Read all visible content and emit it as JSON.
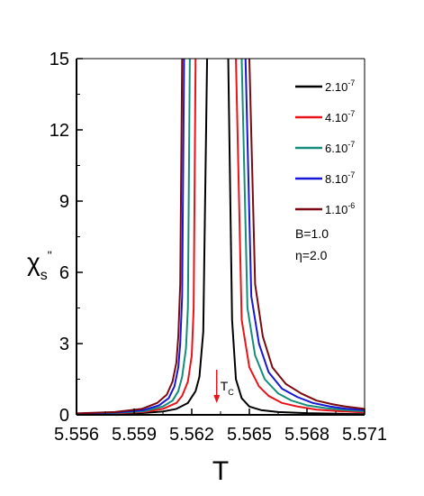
{
  "chart_data": {
    "type": "line",
    "xlabel": "T",
    "ylabel": "χ",
    "ylabel_sub": "s",
    "ylabel_sup": "\"",
    "xlim": [
      5.556,
      5.571
    ],
    "ylim": [
      0,
      15
    ],
    "xticks": [
      "5.556",
      "5.559",
      "5.562",
      "5.565",
      "5.568",
      "5.571"
    ],
    "yticks": [
      "0",
      "3",
      "6",
      "9",
      "12",
      "15"
    ],
    "grid": false,
    "legend_position": "top-right",
    "series": [
      {
        "name": "2.10",
        "name_exp": "-7",
        "color": "#000000",
        "left": {
          "x": [
            5.556,
            5.558,
            5.5595,
            5.5605,
            5.5612,
            5.5618,
            5.5622,
            5.5624,
            5.5626,
            5.5628
          ],
          "y": [
            0.02,
            0.04,
            0.08,
            0.14,
            0.25,
            0.5,
            1.0,
            1.6,
            3.5,
            15
          ]
        },
        "right": {
          "x": [
            5.5639,
            5.5641,
            5.5643,
            5.5646,
            5.565,
            5.5656,
            5.5665,
            5.568,
            5.57,
            5.571
          ],
          "y": [
            15,
            4.0,
            1.5,
            0.7,
            0.35,
            0.2,
            0.12,
            0.07,
            0.04,
            0.03
          ]
        }
      },
      {
        "name": "4.10",
        "name_exp": "-7",
        "color": "#e8141a",
        "left": {
          "x": [
            5.556,
            5.558,
            5.5595,
            5.5605,
            5.5612,
            5.5615,
            5.5618,
            5.562,
            5.5621,
            5.5622
          ],
          "y": [
            0.03,
            0.06,
            0.12,
            0.25,
            0.5,
            0.8,
            1.4,
            2.5,
            4.5,
            15
          ]
        },
        "right": {
          "x": [
            5.5643,
            5.5646,
            5.565,
            5.5655,
            5.566,
            5.5667,
            5.5675,
            5.5685,
            5.57,
            5.571
          ],
          "y": [
            15,
            4.0,
            2.0,
            1.2,
            0.8,
            0.5,
            0.35,
            0.22,
            0.14,
            0.1
          ]
        }
      },
      {
        "name": "6.10",
        "name_exp": "-7",
        "color": "#168c7a",
        "left": {
          "x": [
            5.556,
            5.558,
            5.5595,
            5.5605,
            5.561,
            5.5613,
            5.5615,
            5.5617,
            5.5618,
            5.5619
          ],
          "y": [
            0.04,
            0.08,
            0.15,
            0.35,
            0.6,
            1.0,
            1.6,
            2.8,
            4.5,
            15
          ]
        },
        "right": {
          "x": [
            5.5646,
            5.5649,
            5.5653,
            5.5658,
            5.5665,
            5.5672,
            5.568,
            5.569,
            5.57,
            5.571
          ],
          "y": [
            15,
            4.5,
            2.5,
            1.5,
            0.9,
            0.6,
            0.4,
            0.28,
            0.2,
            0.15
          ]
        }
      },
      {
        "name": "8.10",
        "name_exp": "-7",
        "color": "#1717d6",
        "left": {
          "x": [
            5.556,
            5.558,
            5.5595,
            5.5603,
            5.5608,
            5.5611,
            5.5613,
            5.5614,
            5.5615,
            5.5616
          ],
          "y": [
            0.05,
            0.1,
            0.2,
            0.4,
            0.7,
            1.2,
            2.0,
            3.0,
            5.0,
            15
          ]
        },
        "right": {
          "x": [
            5.5648,
            5.5651,
            5.5655,
            5.566,
            5.5667,
            5.5675,
            5.5683,
            5.5692,
            5.57,
            5.571
          ],
          "y": [
            15,
            5.0,
            3.0,
            1.8,
            1.1,
            0.75,
            0.5,
            0.35,
            0.26,
            0.2
          ]
        }
      },
      {
        "name": "1.10",
        "name_exp": "-6",
        "color": "#7a0a10",
        "left": {
          "x": [
            5.556,
            5.558,
            5.5594,
            5.5602,
            5.5607,
            5.561,
            5.5612,
            5.5613,
            5.5614,
            5.5615
          ],
          "y": [
            0.06,
            0.12,
            0.25,
            0.5,
            0.85,
            1.4,
            2.2,
            3.3,
            5.5,
            15
          ]
        },
        "right": {
          "x": [
            5.565,
            5.5653,
            5.5657,
            5.5662,
            5.5669,
            5.5677,
            5.5685,
            5.5693,
            5.57,
            5.571
          ],
          "y": [
            15,
            5.5,
            3.3,
            2.0,
            1.3,
            0.9,
            0.6,
            0.45,
            0.35,
            0.25
          ]
        }
      }
    ],
    "annotations": {
      "params": [
        "B=1.0",
        "η=2.0"
      ],
      "tc_label": "T",
      "tc_sub": "C",
      "tc_x": 5.5633,
      "tc_arrow_color": "#e8141a"
    }
  }
}
